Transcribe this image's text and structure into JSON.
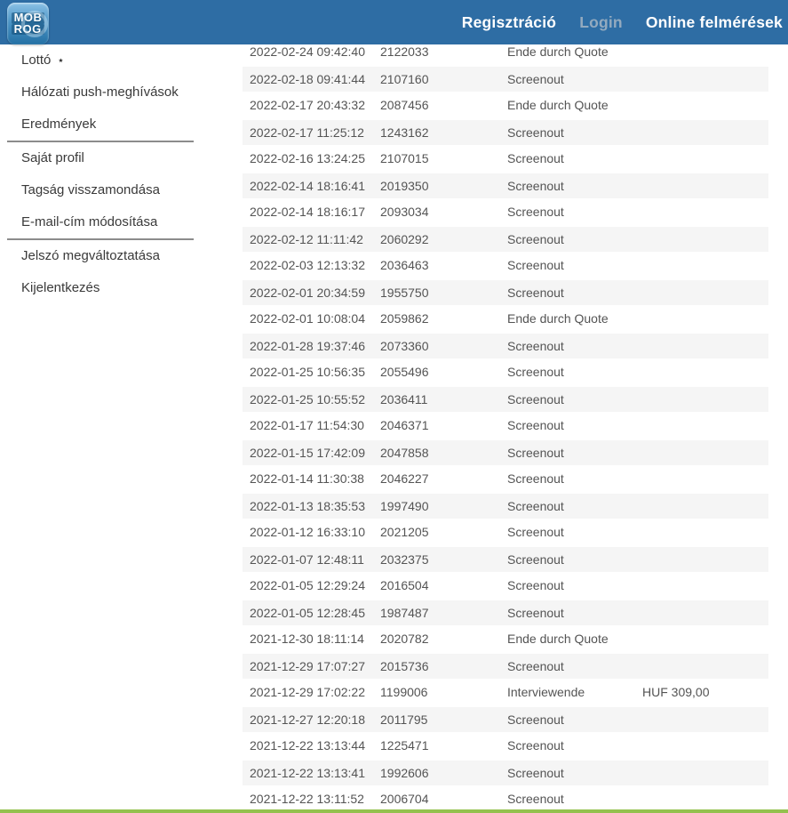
{
  "header": {
    "logo": {
      "line1": "MOB",
      "line2": "ROG"
    },
    "nav": [
      {
        "label": "Regisztráció"
      },
      {
        "label": "Login"
      },
      {
        "label": "Online felmérések"
      }
    ]
  },
  "sidebar": {
    "groups": [
      {
        "items": [
          {
            "label": "Lottó",
            "star": "⋆"
          },
          {
            "label": "Hálózati push-meghívások"
          },
          {
            "label": "Eredmények"
          }
        ]
      },
      {
        "items": [
          {
            "label": "Saját profil"
          },
          {
            "label": "Tagság visszamondása"
          },
          {
            "label": "E-mail-cím módosítása"
          }
        ]
      },
      {
        "items": [
          {
            "label": "Jelszó megváltoztatása"
          },
          {
            "label": "Kijelentkezés"
          }
        ]
      }
    ]
  },
  "table": {
    "rows": [
      {
        "date": "2022-02-24 09:42:40",
        "id": "2122033",
        "status": "Ende durch Quote",
        "amount": ""
      },
      {
        "date": "2022-02-18 09:41:44",
        "id": "2107160",
        "status": "Screenout",
        "amount": ""
      },
      {
        "date": "2022-02-17 20:43:32",
        "id": "2087456",
        "status": "Ende durch Quote",
        "amount": ""
      },
      {
        "date": "2022-02-17 11:25:12",
        "id": "1243162",
        "status": "Screenout",
        "amount": ""
      },
      {
        "date": "2022-02-16 13:24:25",
        "id": "2107015",
        "status": "Screenout",
        "amount": ""
      },
      {
        "date": "2022-02-14 18:16:41",
        "id": "2019350",
        "status": "Screenout",
        "amount": ""
      },
      {
        "date": "2022-02-14 18:16:17",
        "id": "2093034",
        "status": "Screenout",
        "amount": ""
      },
      {
        "date": "2022-02-12 11:11:42",
        "id": "2060292",
        "status": "Screenout",
        "amount": ""
      },
      {
        "date": "2022-02-03 12:13:32",
        "id": "2036463",
        "status": "Screenout",
        "amount": ""
      },
      {
        "date": "2022-02-01 20:34:59",
        "id": "1955750",
        "status": "Screenout",
        "amount": ""
      },
      {
        "date": "2022-02-01 10:08:04",
        "id": "2059862",
        "status": "Ende durch Quote",
        "amount": ""
      },
      {
        "date": "2022-01-28 19:37:46",
        "id": "2073360",
        "status": "Screenout",
        "amount": ""
      },
      {
        "date": "2022-01-25 10:56:35",
        "id": "2055496",
        "status": "Screenout",
        "amount": ""
      },
      {
        "date": "2022-01-25 10:55:52",
        "id": "2036411",
        "status": "Screenout",
        "amount": ""
      },
      {
        "date": "2022-01-17 11:54:30",
        "id": "2046371",
        "status": "Screenout",
        "amount": ""
      },
      {
        "date": "2022-01-15 17:42:09",
        "id": "2047858",
        "status": "Screenout",
        "amount": ""
      },
      {
        "date": "2022-01-14 11:30:38",
        "id": "2046227",
        "status": "Screenout",
        "amount": ""
      },
      {
        "date": "2022-01-13 18:35:53",
        "id": "1997490",
        "status": "Screenout",
        "amount": ""
      },
      {
        "date": "2022-01-12 16:33:10",
        "id": "2021205",
        "status": "Screenout",
        "amount": ""
      },
      {
        "date": "2022-01-07 12:48:11",
        "id": "2032375",
        "status": "Screenout",
        "amount": ""
      },
      {
        "date": "2022-01-05 12:29:24",
        "id": "2016504",
        "status": "Screenout",
        "amount": ""
      },
      {
        "date": "2022-01-05 12:28:45",
        "id": "1987487",
        "status": "Screenout",
        "amount": ""
      },
      {
        "date": "2021-12-30 18:11:14",
        "id": "2020782",
        "status": "Ende durch Quote",
        "amount": ""
      },
      {
        "date": "2021-12-29 17:07:27",
        "id": "2015736",
        "status": "Screenout",
        "amount": ""
      },
      {
        "date": "2021-12-29 17:02:22",
        "id": "1199006",
        "status": "Interviewende",
        "amount": "HUF 309,00"
      },
      {
        "date": "2021-12-27 12:20:18",
        "id": "2011795",
        "status": "Screenout",
        "amount": ""
      },
      {
        "date": "2021-12-22 13:13:44",
        "id": "1225471",
        "status": "Screenout",
        "amount": ""
      },
      {
        "date": "2021-12-22 13:13:41",
        "id": "1992606",
        "status": "Screenout",
        "amount": ""
      },
      {
        "date": "2021-12-22 13:11:52",
        "id": "2006704",
        "status": "Screenout",
        "amount": ""
      }
    ]
  },
  "colors": {
    "header_bg": "#2e6da4",
    "muted_link": "#93aabf",
    "row_alt": "#f5f5f5",
    "table_text": "#545454",
    "accent_green": "#94c14e"
  }
}
